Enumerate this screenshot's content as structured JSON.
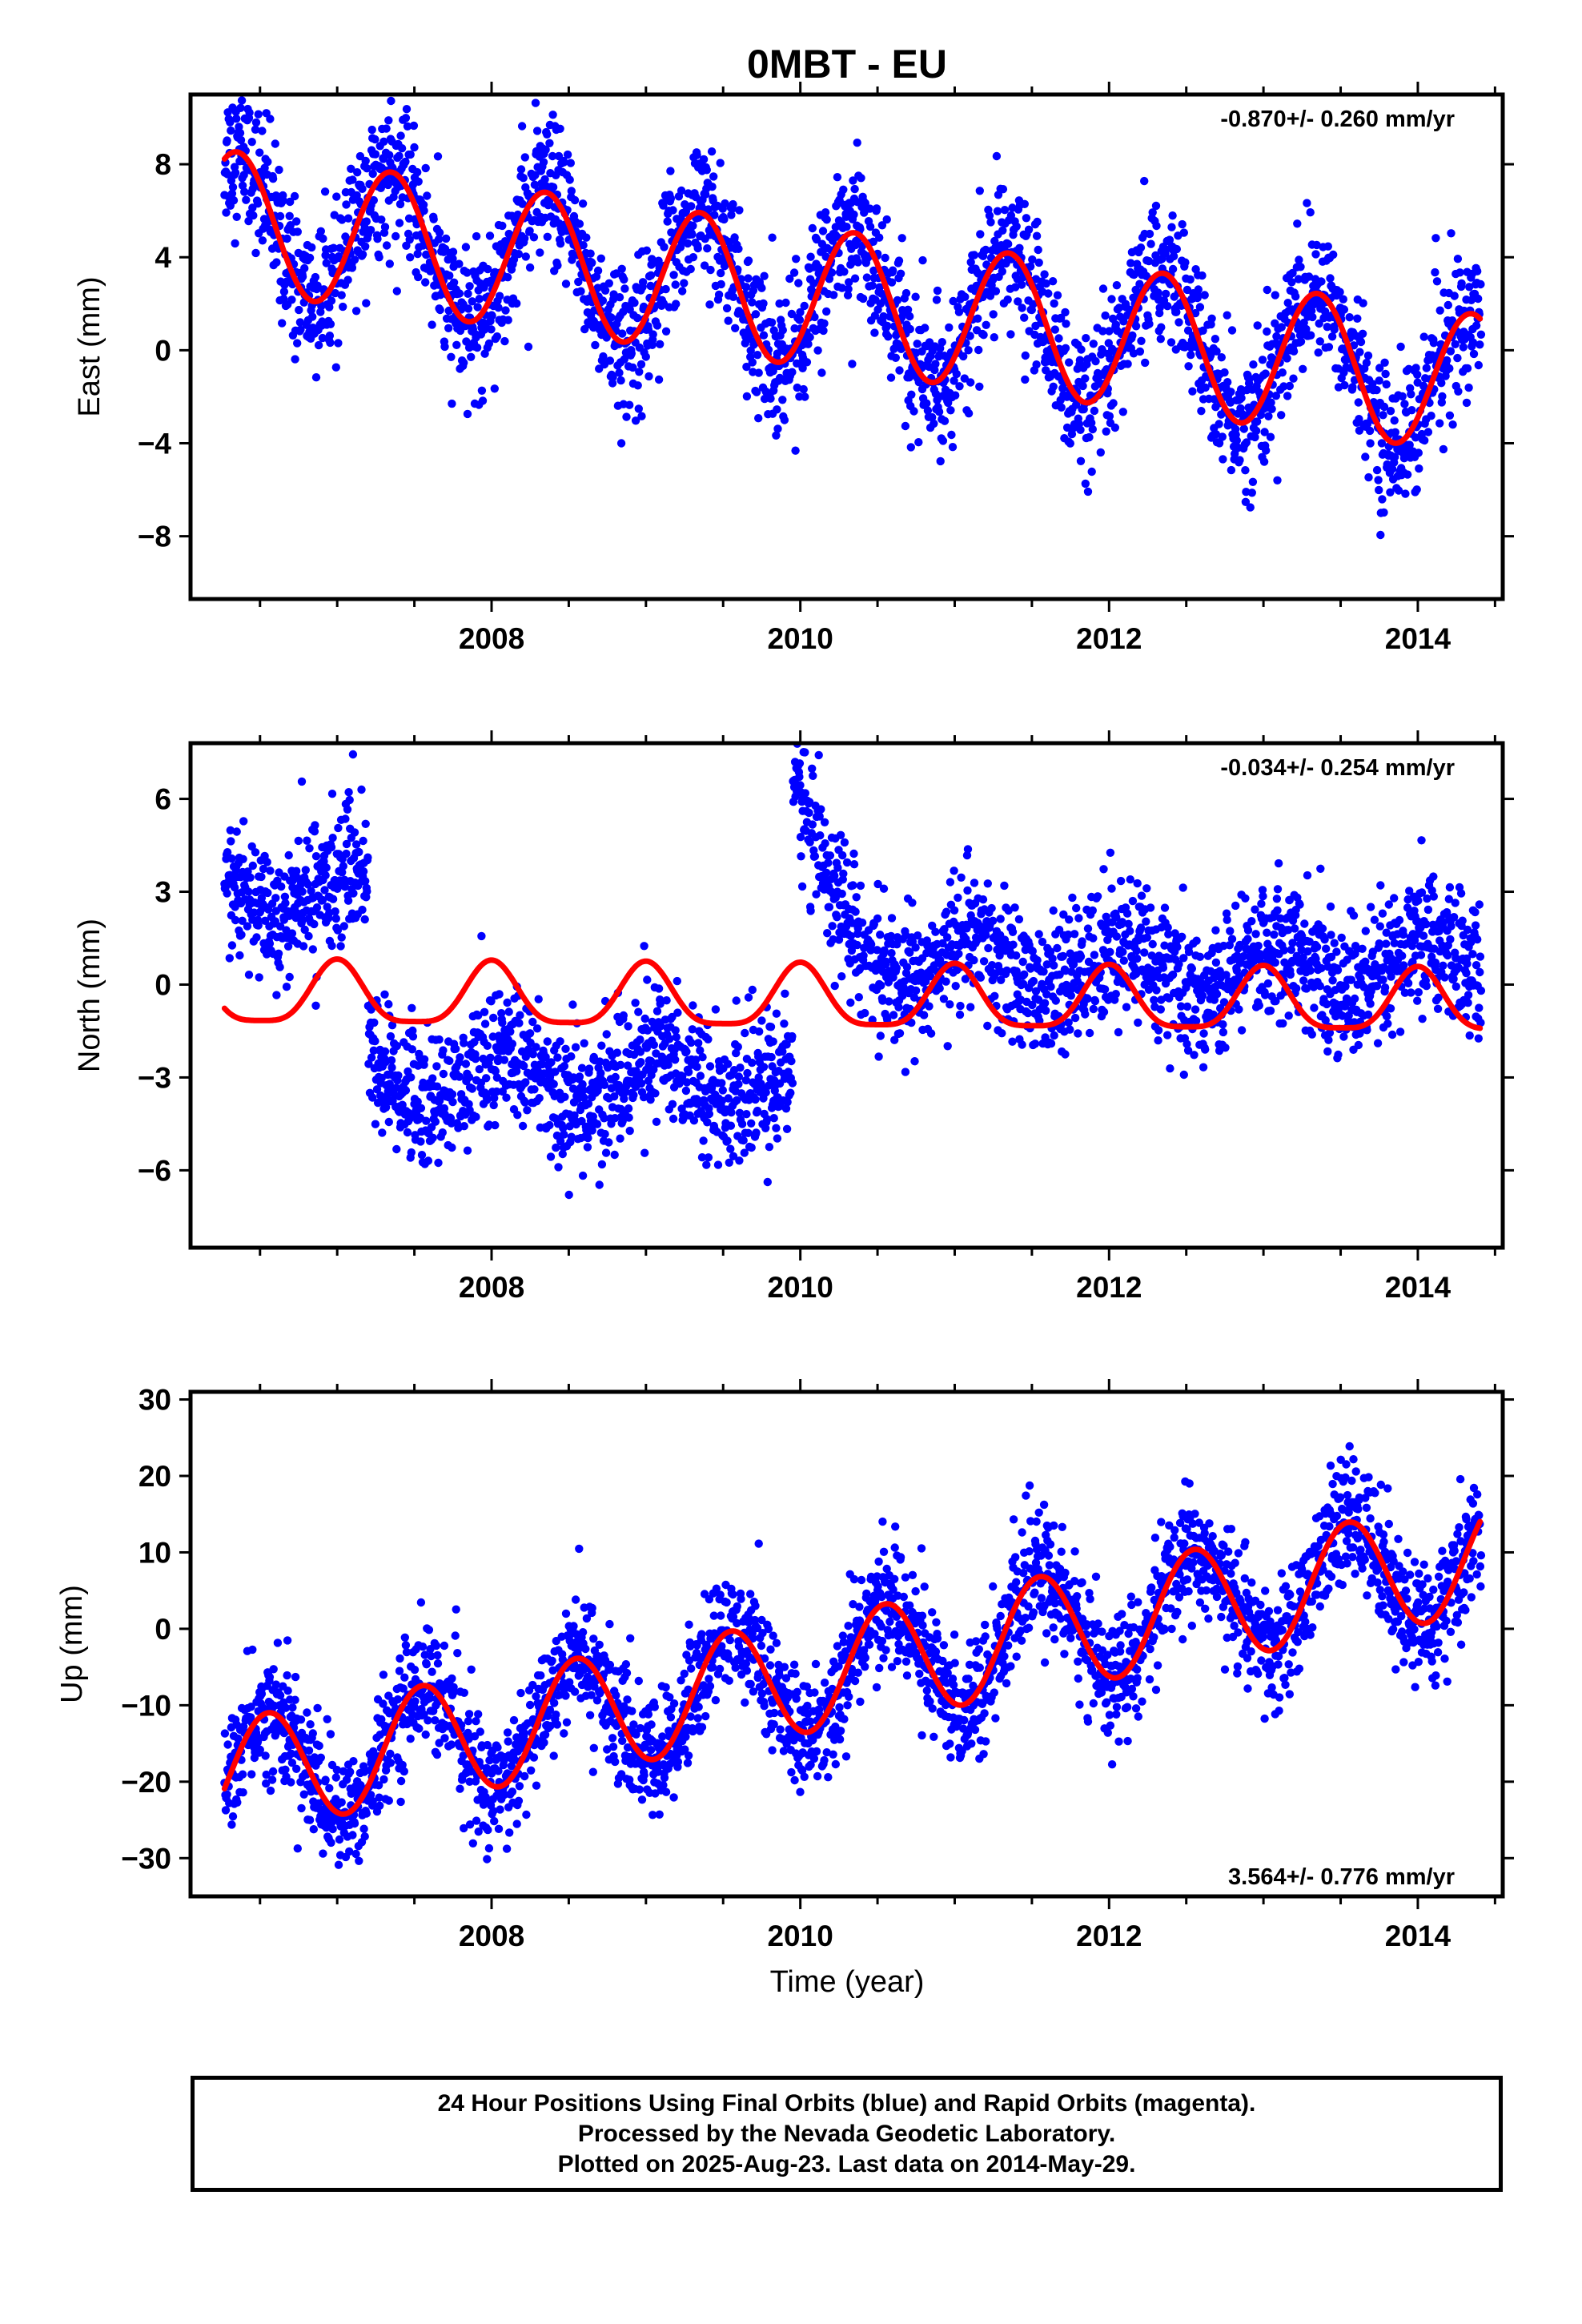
{
  "title": "0MBT - EU",
  "xlabel": "Time (year)",
  "x_ticks": [
    "2008",
    "2010",
    "2012",
    "2014"
  ],
  "colors": {
    "points": "#0000ff",
    "fit": "#ff0000",
    "frame": "#000000"
  },
  "footer": {
    "line1": "24 Hour Positions Using Final Orbits (blue) and Rapid Orbits (magenta).",
    "line2": "Processed by the Nevada Geodetic Laboratory.",
    "line3": "Plotted on 2025-Aug-23. Last data on 2014-May-29."
  },
  "chart_data": [
    {
      "type": "scatter",
      "component": "east",
      "ylabel": "East (mm)",
      "rate": "-0.870+/- 0.260 mm/yr",
      "rate_position": "top-right",
      "xlim": [
        2006.05,
        2014.55
      ],
      "ylim": [
        -10.7,
        11.0
      ],
      "yticks": [
        8,
        4,
        0,
        -4,
        -8
      ],
      "ytick_labels": [
        "8",
        "4",
        "0",
        "−4",
        "−8"
      ],
      "x_start": 2006.27,
      "x_end": 2014.41,
      "point_series_name": "24 Hour Positions (Final Orbits)",
      "observations_approx": [
        [
          2006.3,
          7.0
        ],
        [
          2006.5,
          8.0
        ],
        [
          2006.9,
          2.0
        ],
        [
          2007.2,
          6.5
        ],
        [
          2007.5,
          2.0
        ],
        [
          2007.9,
          -2.0
        ],
        [
          2008.4,
          5.0
        ],
        [
          2008.9,
          -3.0
        ],
        [
          2009.4,
          3.0
        ],
        [
          2009.9,
          -3.0
        ],
        [
          2010.4,
          4.0
        ],
        [
          2010.9,
          -1.5
        ],
        [
          2011.4,
          3.0
        ],
        [
          2011.9,
          -3.0
        ],
        [
          2012.4,
          2.0
        ],
        [
          2012.9,
          -6.0
        ],
        [
          2013.4,
          0.0
        ],
        [
          2013.9,
          -6.0
        ],
        [
          2014.4,
          -1.5
        ]
      ],
      "model": {
        "offset_at_2006_27": 5.6,
        "rate": -0.87,
        "annual_amp": 3.0,
        "annual_peak_phase": 0.35
      },
      "noise_sd": 1.5
    },
    {
      "type": "scatter",
      "component": "north",
      "ylabel": "North (mm)",
      "rate": "-0.034+/- 0.254 mm/yr",
      "rate_position": "top-right",
      "xlim": [
        2006.05,
        2014.55
      ],
      "ylim": [
        -8.5,
        7.8
      ],
      "yticks": [
        6,
        3,
        0,
        -3,
        -6
      ],
      "ytick_labels": [
        "6",
        "3",
        "0",
        "−3",
        "−6"
      ],
      "x_start": 2006.27,
      "x_end": 2014.41,
      "point_series_name": "24 Hour Positions (Final Orbits)",
      "offsets": [
        {
          "from": 2006.27,
          "to": 2007.2,
          "level": 3.0
        },
        {
          "from": 2007.2,
          "to": 2009.95,
          "level": -3.0
        },
        {
          "from": 2009.95,
          "to": 2014.41,
          "level": 0.5
        }
      ],
      "post_2010_spike": {
        "start": 2009.95,
        "peak": 6.5,
        "decay_years": 0.25
      },
      "model": {
        "rate": -0.034,
        "annual_amp": 1.0,
        "annual_peak_phase": 0.0,
        "semiannual_amp": 0.25,
        "base": -0.4
      },
      "noise_sd": 1.1
    },
    {
      "type": "scatter",
      "component": "up",
      "ylabel": "Up (mm)",
      "rate": "3.564+/- 0.776 mm/yr",
      "rate_position": "bottom-right",
      "xlim": [
        2006.05,
        2014.55
      ],
      "ylim": [
        -35.0,
        31.0
      ],
      "yticks": [
        30,
        20,
        10,
        0,
        -10,
        -20,
        -30
      ],
      "ytick_labels": [
        "30",
        "20",
        "10",
        "0",
        "−10",
        "−20",
        "−30"
      ],
      "x_start": 2006.27,
      "x_end": 2014.41,
      "point_series_name": "24 Hour Positions (Final Orbits)",
      "observations_approx": [
        [
          2006.3,
          -18
        ],
        [
          2006.6,
          -5
        ],
        [
          2007.1,
          -17
        ],
        [
          2007.6,
          -1
        ],
        [
          2008.1,
          -13
        ],
        [
          2008.6,
          3
        ],
        [
          2009.1,
          -10
        ],
        [
          2009.6,
          6
        ],
        [
          2010.1,
          -7
        ],
        [
          2010.6,
          10
        ],
        [
          2011.1,
          -3
        ],
        [
          2011.6,
          13
        ],
        [
          2012.1,
          0
        ],
        [
          2012.6,
          17
        ],
        [
          2013.1,
          4
        ],
        [
          2013.6,
          20
        ],
        [
          2014.1,
          8
        ],
        [
          2014.4,
          18
        ]
      ],
      "model": {
        "offset_at_2006_27": -19.5,
        "rate": 3.564,
        "annual_amp": 7.5,
        "annual_peak_phase": 0.55
      },
      "noise_sd": 4.0
    }
  ]
}
